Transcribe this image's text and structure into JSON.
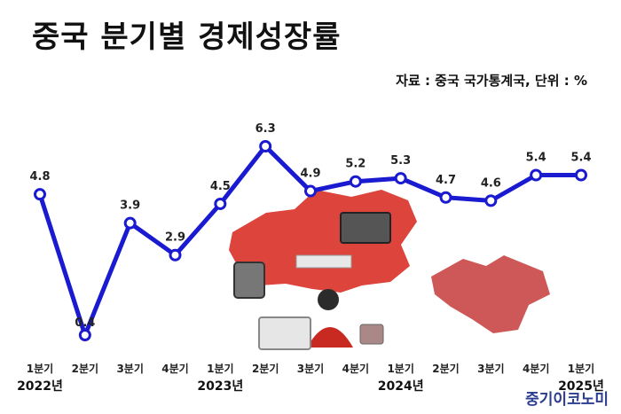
{
  "header": {
    "title": "중국 분기별 경제성장률",
    "source": "자료 : 중국 국가통계국, 단위 : %"
  },
  "brand": "중기이코노미",
  "colors": {
    "line": "#1a1ad0",
    "illustration_red": "#d9342b"
  },
  "chart_data": {
    "type": "line",
    "title": "중국 분기별 경제성장률",
    "categories": [
      "1분기",
      "2분기",
      "3분기",
      "4분기",
      "1분기",
      "2분기",
      "3분기",
      "4분기",
      "1분기",
      "2분기",
      "3분기",
      "4분기",
      "1분기"
    ],
    "year_labels": [
      {
        "label": "2022년",
        "index": 0
      },
      {
        "label": "2023년",
        "index": 4
      },
      {
        "label": "2024년",
        "index": 8
      },
      {
        "label": "2025년",
        "index": 12
      }
    ],
    "values": [
      4.8,
      0.4,
      3.9,
      2.9,
      4.5,
      6.3,
      4.9,
      5.2,
      5.3,
      4.7,
      4.6,
      5.4,
      5.4
    ],
    "value_labels": [
      "4.8",
      "0.4",
      "3.9",
      "2.9",
      "4.5",
      "6.3",
      "4.9",
      "5.2",
      "5.3",
      "4.7",
      "4.6",
      "5.4",
      "5.4"
    ],
    "xlabel": "",
    "ylabel": "",
    "grid": false,
    "legend": "none"
  }
}
